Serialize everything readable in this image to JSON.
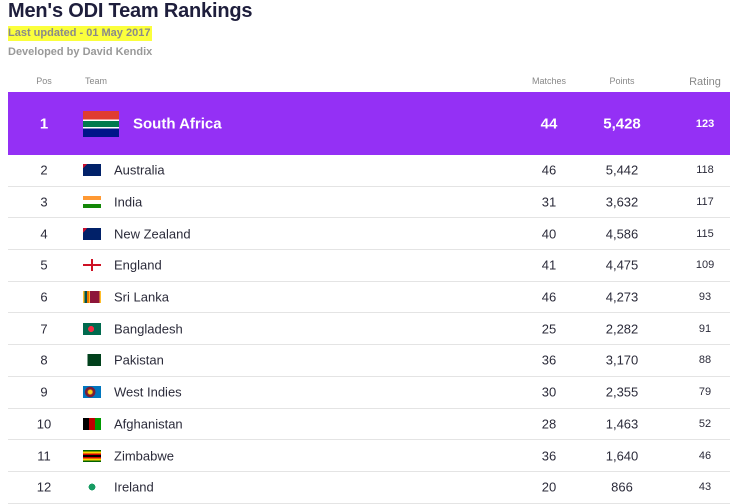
{
  "header": {
    "title": "Men's ODI Team Rankings",
    "updated": "Last updated - 01 May 2017",
    "credit": "Developed by David Kendix"
  },
  "table": {
    "columns": [
      "Pos",
      "Team",
      "Matches",
      "Points",
      "Rating"
    ],
    "rows": [
      [
        "1",
        "South Africa",
        "44",
        "5,428",
        "123"
      ],
      [
        "2",
        "Australia",
        "46",
        "5,442",
        "118"
      ],
      [
        "3",
        "India",
        "31",
        "3,632",
        "117"
      ],
      [
        "4",
        "New Zealand",
        "40",
        "4,586",
        "115"
      ],
      [
        "5",
        "England",
        "41",
        "4,475",
        "109"
      ],
      [
        "6",
        "Sri Lanka",
        "46",
        "4,273",
        "93"
      ],
      [
        "7",
        "Bangladesh",
        "25",
        "2,282",
        "91"
      ],
      [
        "8",
        "Pakistan",
        "36",
        "3,170",
        "88"
      ],
      [
        "9",
        "West Indies",
        "30",
        "2,355",
        "79"
      ],
      [
        "10",
        "Afghanistan",
        "28",
        "1,463",
        "52"
      ],
      [
        "11",
        "Zimbabwe",
        "36",
        "1,640",
        "46"
      ],
      [
        "12",
        "Ireland",
        "20",
        "866",
        "43"
      ]
    ]
  }
}
